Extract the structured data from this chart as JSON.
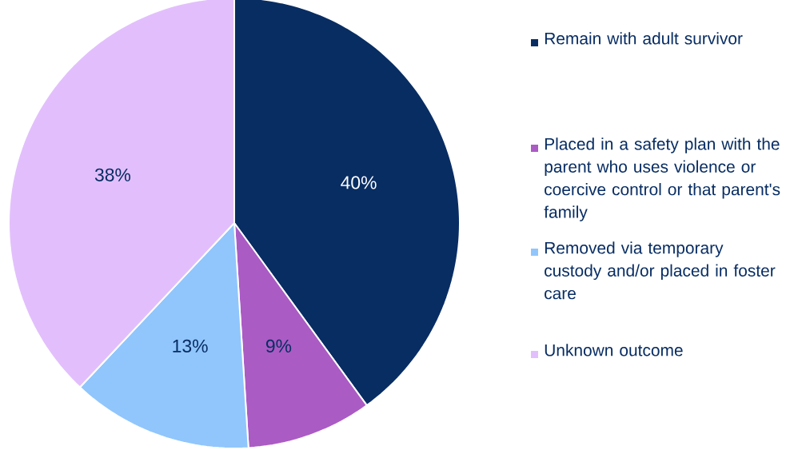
{
  "chart_data": {
    "type": "pie",
    "categories": [
      "Remain with adult survivor",
      "Placed in a safety plan with the parent who uses violence or coercive control or that parent's family",
      "Removed via temporary custody and/or placed in foster care",
      "Unknown outcome"
    ],
    "values": [
      40,
      9,
      13,
      38
    ],
    "value_labels": [
      "40%",
      "9%",
      "13%",
      "38%"
    ],
    "colors": [
      "#082d63",
      "#ab5bc4",
      "#90c6fc",
      "#e2bffc"
    ],
    "legend": "right"
  }
}
